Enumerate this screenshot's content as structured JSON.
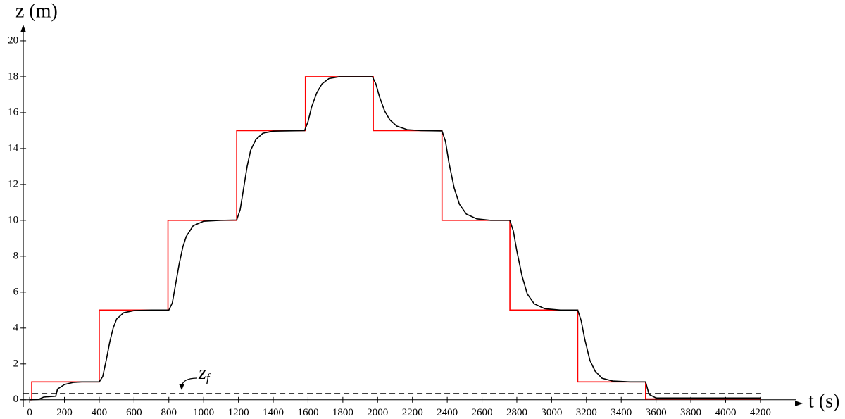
{
  "chart_data": {
    "type": "line",
    "xlabel": "t (s)",
    "ylabel": "z (m)",
    "xlim": [
      -57,
      4423
    ],
    "ylim": [
      -0.4,
      20.9
    ],
    "xticks": [
      0,
      200,
      400,
      600,
      800,
      1000,
      1200,
      1400,
      1600,
      1800,
      2000,
      2200,
      2400,
      2600,
      2800,
      3000,
      3200,
      3400,
      3600,
      3800,
      4000,
      4200
    ],
    "yticks": [
      0,
      2,
      4,
      6,
      8,
      10,
      12,
      14,
      16,
      18,
      20
    ],
    "reference_line": {
      "label": "z",
      "label_subscript": "f",
      "value": 0.35,
      "color": "#000000"
    },
    "series": [
      {
        "color": "#ff0000",
        "x": [
          0,
          12,
          12,
          400,
          400,
          795,
          795,
          1190,
          1190,
          1585,
          1585,
          1975,
          1975,
          2370,
          2370,
          2760,
          2760,
          3150,
          3150,
          3540,
          3540,
          4200
        ],
        "values": [
          0,
          0,
          1,
          1,
          5,
          5,
          10,
          10,
          15,
          15,
          18,
          18,
          15,
          15,
          10,
          10,
          5,
          5,
          1,
          1,
          0.05,
          0.05
        ]
      },
      {
        "color": "#000000",
        "x": [
          0,
          50,
          80,
          150,
          160,
          200,
          250,
          300,
          400,
          420,
          440,
          460,
          480,
          500,
          540,
          600,
          700,
          800,
          820,
          840,
          860,
          880,
          900,
          940,
          1000,
          1100,
          1190,
          1210,
          1230,
          1250,
          1270,
          1300,
          1340,
          1400,
          1580,
          1600,
          1620,
          1650,
          1680,
          1720,
          1780,
          1970,
          1990,
          2010,
          2040,
          2070,
          2110,
          2170,
          2250,
          2370,
          2390,
          2410,
          2440,
          2470,
          2510,
          2570,
          2650,
          2760,
          2780,
          2800,
          2830,
          2860,
          2900,
          2960,
          3050,
          3150,
          3170,
          3190,
          3220,
          3250,
          3290,
          3350,
          3450,
          3540,
          3560,
          3600,
          4200
        ],
        "values": [
          0,
          0.02,
          0.15,
          0.2,
          0.6,
          0.85,
          0.97,
          1.0,
          1.0,
          1.3,
          2.2,
          3.2,
          4.0,
          4.5,
          4.85,
          4.97,
          5.0,
          5.0,
          5.4,
          6.5,
          7.6,
          8.5,
          9.1,
          9.7,
          9.95,
          10,
          10.02,
          10.6,
          11.8,
          13.0,
          13.9,
          14.5,
          14.85,
          14.97,
          15.0,
          15.5,
          16.3,
          17.1,
          17.6,
          17.9,
          18.0,
          18.0,
          17.6,
          16.9,
          16.1,
          15.6,
          15.25,
          15.05,
          15.0,
          14.98,
          14.4,
          13.2,
          11.8,
          10.9,
          10.35,
          10.08,
          10.0,
          10.0,
          9.4,
          8.3,
          6.9,
          5.9,
          5.35,
          5.08,
          5.0,
          5.0,
          4.4,
          3.4,
          2.2,
          1.6,
          1.2,
          1.05,
          1.0,
          1.0,
          0.3,
          0.1,
          0.1
        ]
      }
    ]
  }
}
